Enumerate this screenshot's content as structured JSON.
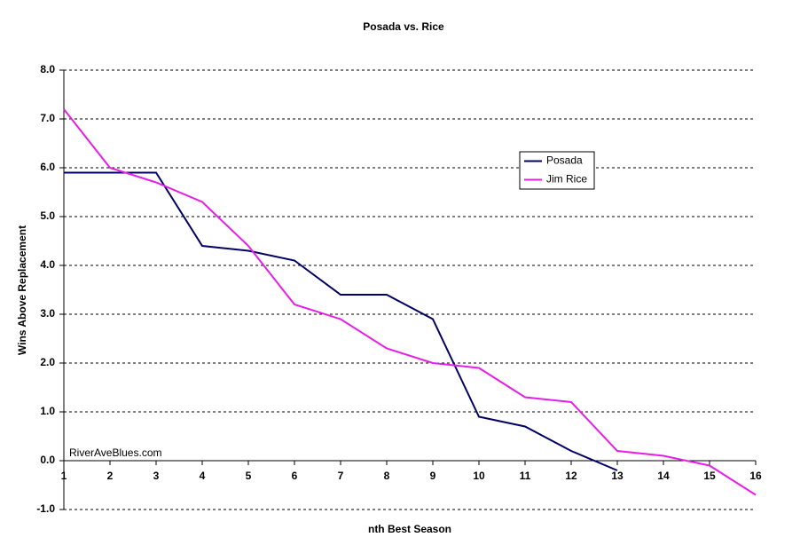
{
  "chart_data": {
    "type": "line",
    "title": "Posada vs. Rice",
    "x_label": "nth Best Season",
    "y_label": "Wins Above Replacement",
    "annotation": "RiverAveBlues.com",
    "x": [
      1,
      2,
      3,
      4,
      5,
      6,
      7,
      8,
      9,
      10,
      11,
      12,
      13,
      14,
      15,
      16
    ],
    "series": [
      {
        "name": "Posada",
        "color": "#000066",
        "values": [
          5.9,
          5.9,
          5.9,
          4.4,
          4.3,
          4.1,
          3.4,
          3.4,
          2.9,
          0.9,
          0.7,
          0.2,
          -0.2,
          null,
          null,
          null
        ]
      },
      {
        "name": "Jim Rice",
        "color": "#e81ee8",
        "values": [
          7.2,
          6.0,
          5.7,
          5.3,
          4.4,
          3.2,
          2.9,
          2.3,
          2.0,
          1.9,
          1.3,
          1.2,
          0.2,
          0.1,
          -0.1,
          -0.7
        ]
      }
    ],
    "xlim": [
      1,
      16
    ],
    "xticks": [
      1,
      2,
      3,
      4,
      5,
      6,
      7,
      8,
      9,
      10,
      11,
      12,
      13,
      14,
      15,
      16
    ],
    "ylim": [
      -1,
      8
    ],
    "yticks": [
      {
        "value": -1,
        "label": "-1.0"
      },
      {
        "value": 0,
        "label": "0.0"
      },
      {
        "value": 1,
        "label": "1.0"
      },
      {
        "value": 2,
        "label": "2.0"
      },
      {
        "value": 3,
        "label": "3.0"
      },
      {
        "value": 4,
        "label": "4.0"
      },
      {
        "value": 5,
        "label": "5.0"
      },
      {
        "value": 6,
        "label": "6.0"
      },
      {
        "value": 7,
        "label": "7.0"
      },
      {
        "value": 8,
        "label": "8.0"
      }
    ],
    "grid": true,
    "legend": "upper right"
  }
}
